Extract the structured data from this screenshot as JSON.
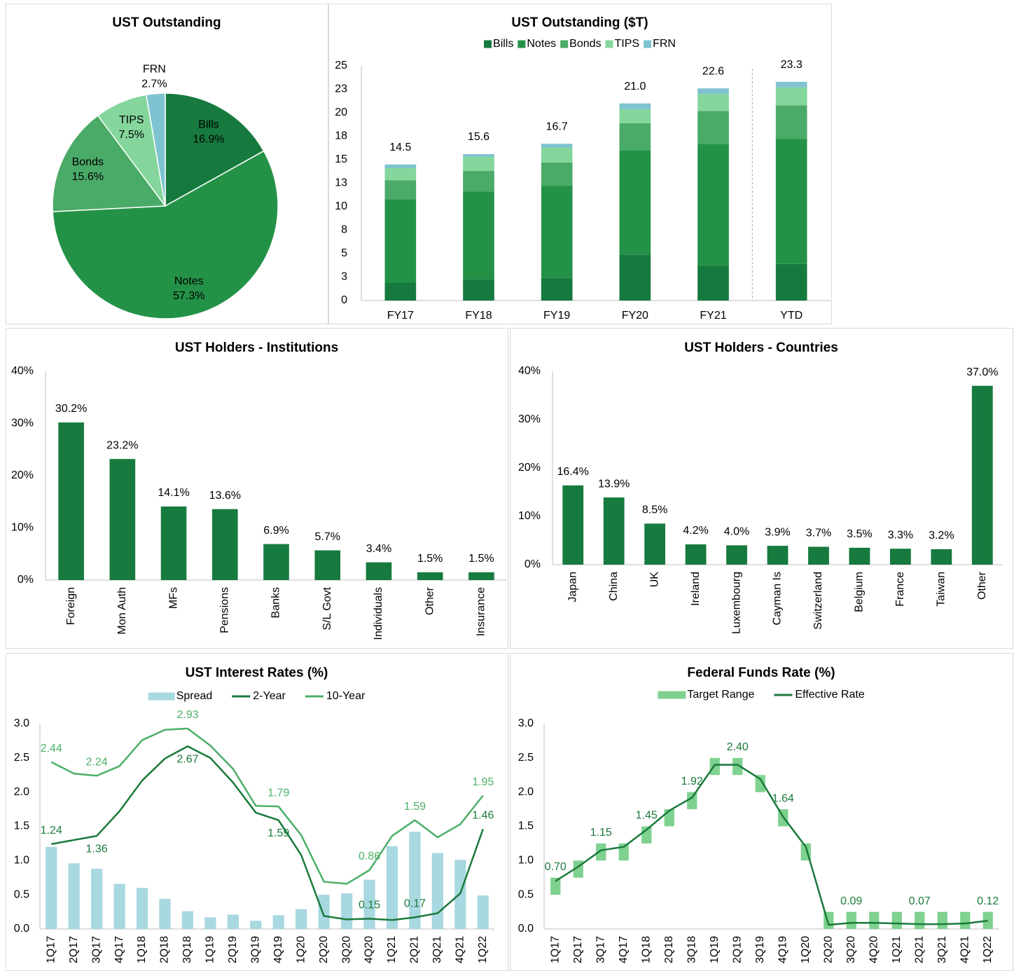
{
  "chart_data": [
    {
      "type": "pie",
      "title": "UST Outstanding",
      "categories": [
        "Bills",
        "Notes",
        "Bonds",
        "TIPS",
        "FRN"
      ],
      "values": [
        16.9,
        57.3,
        15.6,
        7.5,
        2.7
      ],
      "value_labels": [
        "16.9%",
        "57.3%",
        "15.6%",
        "7.5%",
        "2.7%"
      ],
      "colors": [
        "#167a3e",
        "#239247",
        "#4aaa67",
        "#84d69c",
        "#7fc3d0"
      ]
    },
    {
      "type": "bar",
      "stacked": true,
      "title": "UST Outstanding ($T)",
      "categories": [
        "FY17",
        "FY18",
        "FY19",
        "FY20",
        "FY21",
        "YTD"
      ],
      "series": [
        {
          "name": "Bills",
          "color": "#167a3e",
          "values": [
            1.9,
            2.3,
            2.4,
            4.9,
            3.7,
            3.9
          ]
        },
        {
          "name": "Notes",
          "color": "#239247",
          "values": [
            8.9,
            9.3,
            9.8,
            11.1,
            13.0,
            13.3
          ]
        },
        {
          "name": "Bonds",
          "color": "#4aaa67",
          "values": [
            2.0,
            2.2,
            2.5,
            2.9,
            3.5,
            3.6
          ]
        },
        {
          "name": "TIPS",
          "color": "#84d69c",
          "values": [
            1.3,
            1.5,
            1.6,
            1.5,
            1.8,
            1.9
          ]
        },
        {
          "name": "FRN",
          "color": "#7fc3d0",
          "values": [
            0.4,
            0.3,
            0.4,
            0.6,
            0.6,
            0.6
          ]
        }
      ],
      "totals": [
        14.5,
        15.6,
        16.7,
        21.0,
        22.6,
        23.3
      ],
      "total_labels": [
        "14.5",
        "15.6",
        "16.7",
        "21.0",
        "22.6",
        "23.3"
      ],
      "ylim": [
        0,
        25
      ],
      "yticks": [
        0,
        {
          "value": 2.5,
          "label": "3"
        },
        5,
        {
          "value": 7.5,
          "label": "8"
        },
        10,
        {
          "value": 12.5,
          "label": "13"
        },
        15,
        {
          "value": 17.5,
          "label": "18"
        },
        20,
        {
          "value": 22.5,
          "label": "23"
        },
        25
      ],
      "legend": "top"
    },
    {
      "type": "bar",
      "title": "UST Holders - Institutions",
      "categories": [
        "Foreign",
        "Mon Auth",
        "MFs",
        "Pensions",
        "Banks",
        "S/L Govt",
        "Individuals",
        "Other",
        "Insurance"
      ],
      "values": [
        30.2,
        23.2,
        14.1,
        13.6,
        6.9,
        5.7,
        3.4,
        1.5,
        1.5
      ],
      "value_labels": [
        "30.2%",
        "23.2%",
        "14.1%",
        "13.6%",
        "6.9%",
        "5.7%",
        "3.4%",
        "1.5%",
        "1.5%"
      ],
      "color": "#177a3e",
      "ylim": [
        0,
        40
      ],
      "yticks": [
        {
          "value": 0,
          "label": "0%"
        },
        {
          "value": 10,
          "label": "10%"
        },
        {
          "value": 20,
          "label": "20%"
        },
        {
          "value": 30,
          "label": "30%"
        },
        {
          "value": 40,
          "label": "40%"
        }
      ]
    },
    {
      "type": "bar",
      "title": "UST Holders - Countries",
      "categories": [
        "Japan",
        "China",
        "UK",
        "Ireland",
        "Luxembourg",
        "Cayman Is",
        "Switzerland",
        "Belgium",
        "France",
        "Taiwan",
        "Other"
      ],
      "values": [
        16.4,
        13.9,
        8.5,
        4.2,
        4.0,
        3.9,
        3.7,
        3.5,
        3.3,
        3.2,
        37.0
      ],
      "value_labels": [
        "16.4%",
        "13.9%",
        "8.5%",
        "4.2%",
        "4.0%",
        "3.9%",
        "3.7%",
        "3.5%",
        "3.3%",
        "3.2%",
        "37.0%"
      ],
      "color": "#177a3e",
      "ylim": [
        0,
        40
      ],
      "yticks": [
        {
          "value": 0,
          "label": "0%"
        },
        {
          "value": 10,
          "label": "10%"
        },
        {
          "value": 20,
          "label": "20%"
        },
        {
          "value": 30,
          "label": "30%"
        },
        {
          "value": 40,
          "label": "40%"
        }
      ]
    },
    {
      "type": "combo",
      "title": "UST Interest Rates (%)",
      "categories": [
        "1Q17",
        "2Q17",
        "3Q17",
        "4Q17",
        "1Q18",
        "2Q18",
        "3Q18",
        "1Q19",
        "2Q19",
        "3Q19",
        "4Q19",
        "1Q20",
        "2Q20",
        "3Q20",
        "4Q20",
        "1Q21",
        "2Q21",
        "3Q21",
        "4Q21",
        "1Q22"
      ],
      "series": [
        {
          "name": "Spread",
          "type": "bar",
          "color": "#a8d8e0",
          "values": [
            1.2,
            0.96,
            0.88,
            0.66,
            0.6,
            0.44,
            0.26,
            0.17,
            0.21,
            0.12,
            0.2,
            0.29,
            0.5,
            0.52,
            0.72,
            1.21,
            1.42,
            1.11,
            1.01,
            0.49
          ]
        },
        {
          "name": "2-Year",
          "type": "line",
          "color": "#1a7a3c",
          "values": [
            1.24,
            1.3,
            1.36,
            1.72,
            2.17,
            2.49,
            2.67,
            2.5,
            2.14,
            1.7,
            1.59,
            1.08,
            0.19,
            0.14,
            0.15,
            0.13,
            0.17,
            0.23,
            0.52,
            1.46
          ],
          "value_labels": [
            "1.24",
            null,
            "1.36",
            null,
            null,
            null,
            "2.67",
            null,
            null,
            null,
            "1.59",
            null,
            null,
            null,
            "0.15",
            null,
            "0.17",
            null,
            null,
            "1.46"
          ]
        },
        {
          "name": "10-Year",
          "type": "line",
          "color": "#4caf68",
          "values": [
            2.44,
            2.27,
            2.24,
            2.38,
            2.76,
            2.91,
            2.93,
            2.68,
            2.34,
            1.8,
            1.79,
            1.37,
            0.69,
            0.66,
            0.86,
            1.36,
            1.59,
            1.34,
            1.53,
            1.95
          ],
          "value_labels": [
            "2.44",
            null,
            "2.24",
            null,
            null,
            null,
            "2.93",
            null,
            null,
            null,
            "1.79",
            null,
            null,
            null,
            "0.86",
            null,
            "1.59",
            null,
            null,
            "1.95"
          ]
        }
      ],
      "ylim": [
        0,
        3
      ],
      "yticks": [
        {
          "value": 0,
          "label": "0.0"
        },
        {
          "value": 0.5,
          "label": "0.5"
        },
        {
          "value": 1,
          "label": "1.0"
        },
        {
          "value": 1.5,
          "label": "1.5"
        },
        {
          "value": 2,
          "label": "2.0"
        },
        {
          "value": 2.5,
          "label": "2.5"
        },
        {
          "value": 3,
          "label": "3.0"
        }
      ],
      "legend": "top"
    },
    {
      "type": "combo",
      "title": "Federal Funds Rate (%)",
      "categories": [
        "1Q17",
        "2Q17",
        "3Q17",
        "4Q17",
        "1Q18",
        "2Q18",
        "3Q18",
        "1Q19",
        "2Q19",
        "3Q19",
        "4Q19",
        "1Q20",
        "2Q20",
        "3Q20",
        "4Q20",
        "1Q21",
        "2Q21",
        "3Q21",
        "4Q21",
        "1Q22"
      ],
      "series": [
        {
          "name": "Target Range",
          "type": "range",
          "color": "#7fd18f",
          "low": [
            0.5,
            0.75,
            1.0,
            1.0,
            1.25,
            1.5,
            1.75,
            2.25,
            2.25,
            2.0,
            1.5,
            1.0,
            0,
            0,
            0,
            0,
            0,
            0,
            0,
            0
          ],
          "high": [
            0.75,
            1.0,
            1.25,
            1.25,
            1.5,
            1.75,
            2.0,
            2.5,
            2.5,
            2.25,
            1.75,
            1.25,
            0.25,
            0.25,
            0.25,
            0.25,
            0.25,
            0.25,
            0.25,
            0.25
          ]
        },
        {
          "name": "Effective Rate",
          "type": "line",
          "color": "#1a7a3c",
          "values": [
            0.7,
            0.91,
            1.15,
            1.2,
            1.45,
            1.73,
            1.92,
            2.4,
            2.4,
            2.19,
            1.64,
            1.2,
            0.06,
            0.09,
            0.09,
            0.08,
            0.07,
            0.07,
            0.08,
            0.12
          ],
          "value_labels": [
            "0.70",
            null,
            "1.15",
            null,
            "1.45",
            null,
            "1.92",
            null,
            "2.40",
            null,
            "1.64",
            null,
            null,
            "0.09",
            null,
            null,
            "0.07",
            null,
            null,
            "0.12"
          ]
        }
      ],
      "ylim": [
        0,
        3
      ],
      "yticks": [
        {
          "value": 0,
          "label": "0.0"
        },
        {
          "value": 0.5,
          "label": "0.5"
        },
        {
          "value": 1,
          "label": "1.0"
        },
        {
          "value": 1.5,
          "label": "1.5"
        },
        {
          "value": 2,
          "label": "2.0"
        },
        {
          "value": 2.5,
          "label": "2.5"
        },
        {
          "value": 3,
          "label": "3.0"
        }
      ],
      "legend": "top"
    }
  ]
}
